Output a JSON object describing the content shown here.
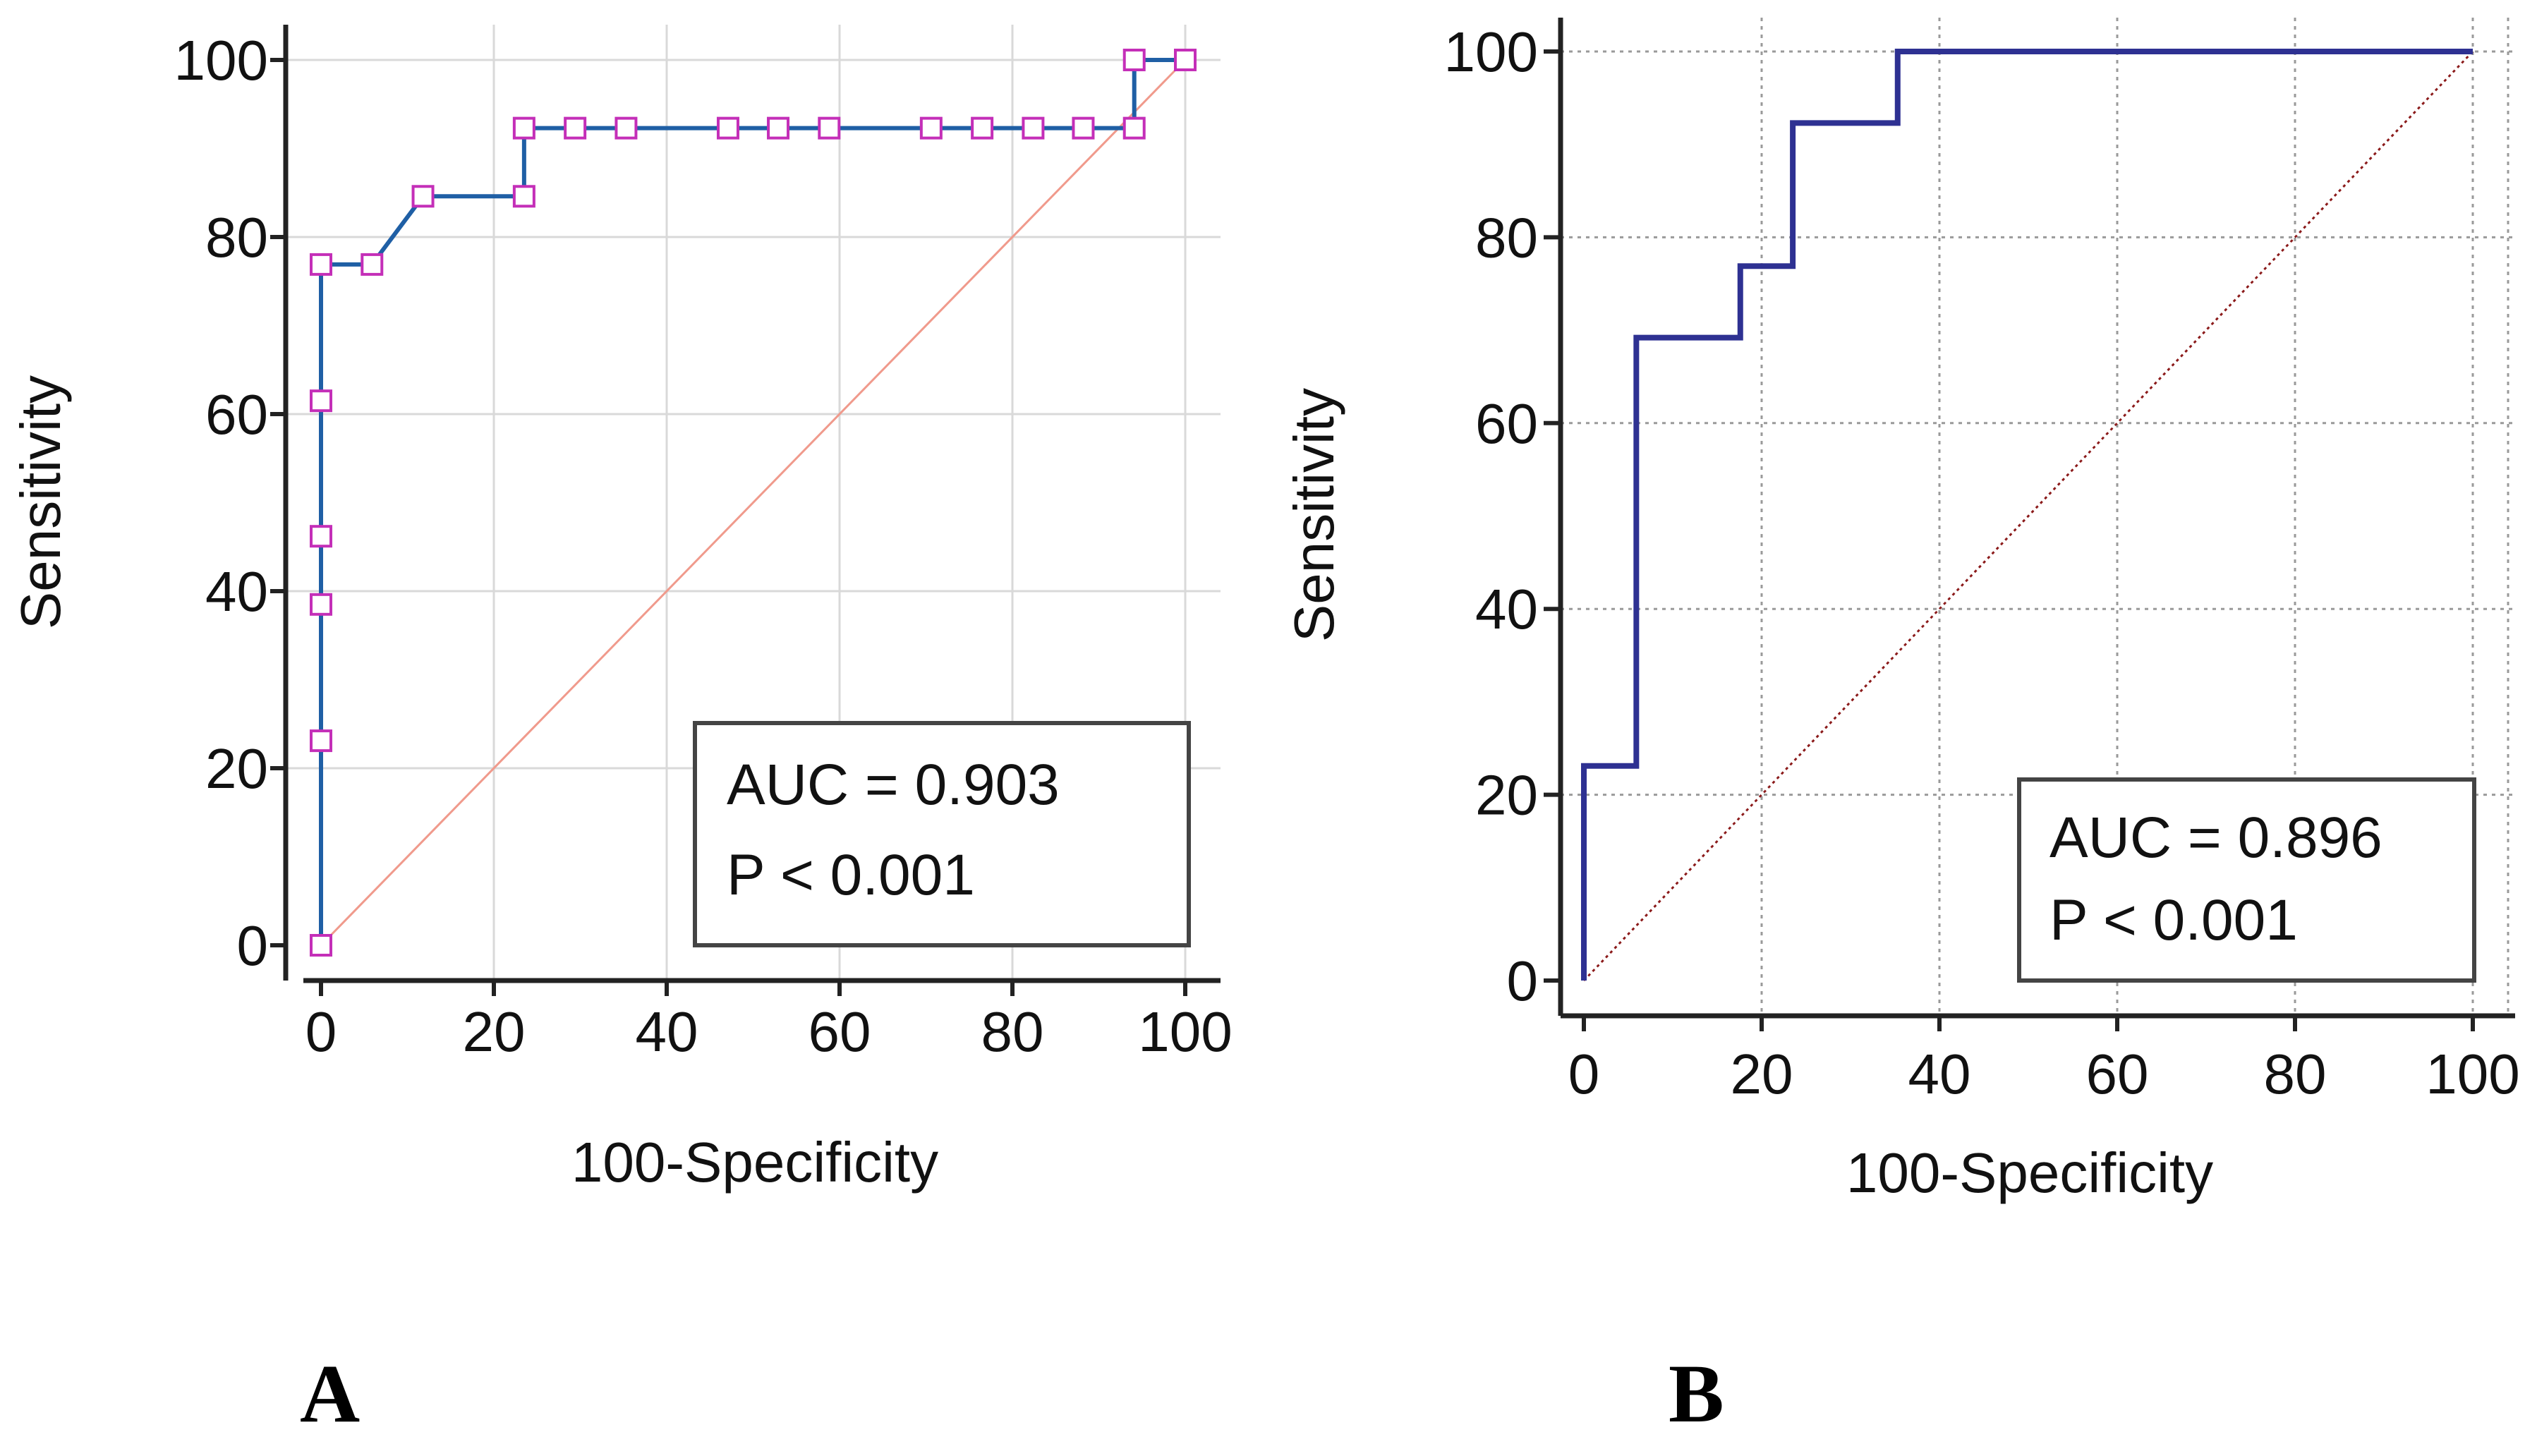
{
  "chart_data": [
    {
      "type": "line",
      "panel_label": "A",
      "xlabel": "100-Specificity",
      "ylabel": "Sensitivity",
      "xlim": [
        0,
        100
      ],
      "ylim": [
        0,
        100
      ],
      "xticks": [
        0,
        20,
        40,
        60,
        80,
        100
      ],
      "yticks": [
        0,
        20,
        40,
        60,
        80,
        100
      ],
      "grid": true,
      "legend_position": "bottom-right",
      "annotations": [
        "AUC = 0.903",
        "P < 0.001"
      ],
      "colors": {
        "roc": "#1f5fa5",
        "markers": "#c42fb8",
        "reference": "#f09a8c",
        "grid": "#d8d8d8"
      },
      "series": [
        {
          "markers": true,
          "step": true,
          "x": [
            0,
            0,
            0,
            0,
            0,
            0,
            5.9,
            11.8,
            23.5,
            23.5,
            29.4,
            35.3,
            47.1,
            52.9,
            58.8,
            70.6,
            76.5,
            82.4,
            88.2,
            94.1,
            94.1,
            100
          ],
          "y": [
            0,
            23.1,
            38.5,
            46.2,
            61.5,
            76.9,
            76.9,
            84.6,
            84.6,
            92.3,
            92.3,
            92.3,
            92.3,
            92.3,
            92.3,
            92.3,
            92.3,
            92.3,
            92.3,
            92.3,
            100,
            100
          ]
        },
        {
          "markers": false,
          "x": [
            0,
            100
          ],
          "y": [
            0,
            100
          ]
        }
      ]
    },
    {
      "type": "line",
      "panel_label": "B",
      "xlabel": "100-Specificity",
      "ylabel": "Sensitivity",
      "xlim": [
        0,
        100
      ],
      "ylim": [
        0,
        100
      ],
      "xticks": [
        0,
        20,
        40,
        60,
        80,
        100
      ],
      "yticks": [
        0,
        20,
        40,
        60,
        80,
        100
      ],
      "grid": true,
      "legend_position": "bottom-right",
      "annotations": [
        "AUC = 0.896",
        "P < 0.001"
      ],
      "colors": {
        "roc": "#2e3192",
        "reference": "#8b1a1a",
        "grid": "#aaaaaa"
      },
      "series": [
        {
          "markers": false,
          "step": true,
          "x": [
            0,
            0,
            5.9,
            5.9,
            17.6,
            17.6,
            23.5,
            23.5,
            35.3,
            35.3,
            100
          ],
          "y": [
            0,
            23.1,
            23.1,
            69.2,
            69.2,
            76.9,
            76.9,
            92.3,
            92.3,
            100,
            100
          ]
        },
        {
          "markers": false,
          "x": [
            0,
            100
          ],
          "y": [
            0,
            100
          ]
        }
      ]
    }
  ]
}
